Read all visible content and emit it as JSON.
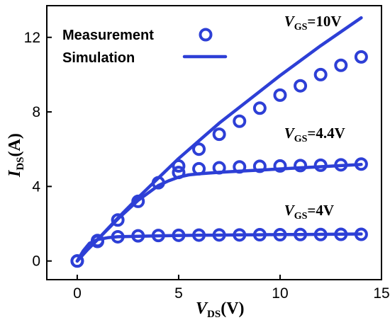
{
  "chart_data": {
    "type": "scatter",
    "xlabel": {
      "main": "V",
      "sub": "DS",
      "tail": "(V)"
    },
    "ylabel": {
      "main": "I",
      "sub": "DS",
      "tail": "(A)"
    },
    "xlim": [
      -1.5,
      15
    ],
    "ylim": [
      -1.0,
      13.7
    ],
    "xticks": [
      0,
      5,
      10,
      15
    ],
    "yticks": [
      0,
      4,
      8,
      12
    ],
    "grid": false,
    "legend": {
      "placement": "top-left",
      "entries": [
        {
          "label": "Measurement",
          "marker": "circle"
        },
        {
          "label": "Simulation",
          "marker": "line"
        }
      ]
    },
    "color": "#2d3fd6",
    "series": [
      {
        "annotation": {
          "main": "V",
          "sub": "GS",
          "tail": "=10V"
        },
        "annotation_at": [
          10.2,
          12.6
        ],
        "measurement": {
          "x": [
            0,
            1,
            2,
            3,
            4,
            5,
            6,
            7,
            8,
            9,
            10,
            11,
            12,
            13,
            14
          ],
          "y": [
            0,
            1.1,
            2.2,
            3.2,
            4.2,
            5.1,
            6.0,
            6.8,
            7.5,
            8.2,
            8.9,
            9.4,
            10.0,
            10.5,
            10.95
          ]
        },
        "simulation": {
          "x": [
            0,
            0.5,
            1,
            2,
            3,
            4,
            5,
            6,
            7,
            8,
            9,
            10,
            11,
            12,
            13,
            14
          ],
          "y": [
            0,
            0.6,
            1.15,
            2.3,
            3.4,
            4.45,
            5.5,
            6.45,
            7.4,
            8.25,
            9.1,
            9.95,
            10.75,
            11.55,
            12.3,
            13.05
          ]
        }
      },
      {
        "annotation": {
          "main": "V",
          "sub": "GS",
          "tail": "=4.4V"
        },
        "annotation_at": [
          10.2,
          6.6
        ],
        "measurement": {
          "x": [
            5,
            6,
            7,
            8,
            9,
            10,
            11,
            12,
            13,
            14
          ],
          "y": [
            4.75,
            4.95,
            5.0,
            5.05,
            5.08,
            5.1,
            5.12,
            5.14,
            5.16,
            5.2
          ]
        },
        "simulation": {
          "x": [
            0,
            0.5,
            1,
            2,
            3,
            4,
            4.5,
            5,
            5.5,
            6,
            7,
            8,
            9,
            10,
            11,
            12,
            13,
            14
          ],
          "y": [
            0,
            0.6,
            1.15,
            2.25,
            3.25,
            4.05,
            4.3,
            4.5,
            4.62,
            4.68,
            4.76,
            4.82,
            4.88,
            4.94,
            5.0,
            5.06,
            5.12,
            5.18
          ]
        }
      },
      {
        "annotation": {
          "main": "V",
          "sub": "GS",
          "tail": "=4V"
        },
        "annotation_at": [
          10.2,
          2.45
        ],
        "measurement": {
          "x": [
            0,
            1,
            2,
            3,
            4,
            5,
            6,
            7,
            8,
            9,
            10,
            11,
            12,
            13,
            14
          ],
          "y": [
            0,
            1.05,
            1.3,
            1.35,
            1.37,
            1.38,
            1.39,
            1.4,
            1.4,
            1.41,
            1.41,
            1.42,
            1.42,
            1.43,
            1.43
          ]
        },
        "simulation": {
          "x": [
            0,
            0.3,
            0.6,
            1,
            1.5,
            2,
            3,
            4,
            5,
            6,
            7,
            8,
            9,
            10,
            11,
            12,
            13,
            14
          ],
          "y": [
            0,
            0.55,
            0.95,
            1.15,
            1.25,
            1.3,
            1.33,
            1.35,
            1.37,
            1.38,
            1.39,
            1.4,
            1.41,
            1.42,
            1.42,
            1.43,
            1.44,
            1.45
          ]
        }
      }
    ]
  }
}
